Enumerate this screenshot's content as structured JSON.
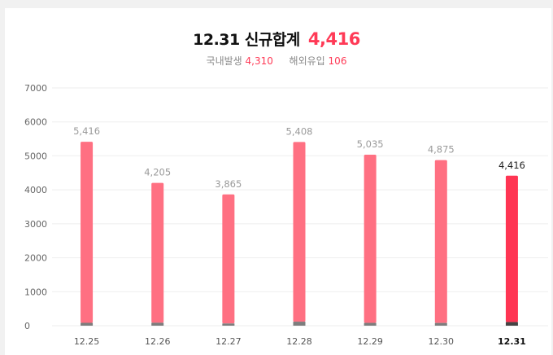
{
  "header": {
    "title": "12.31 신규합계",
    "total": "4,416",
    "domestic_label": "국내발생",
    "domestic_value": "4,310",
    "overseas_label": "해외유입",
    "overseas_value": "106"
  },
  "colors": {
    "bar": "#ff7082",
    "bar_highlight": "#ff3553",
    "import_bar": "#7d7d7d",
    "import_bar_highlight": "#444444",
    "grid": "#eeeeee"
  },
  "chart_data": {
    "type": "bar",
    "stacked": true,
    "categories": [
      "12.25",
      "12.26",
      "12.27",
      "12.28",
      "12.29",
      "12.30",
      "12.31"
    ],
    "value_labels": [
      "5,416",
      "4,205",
      "3,865",
      "5,408",
      "5,035",
      "4,875",
      "4,416"
    ],
    "series": [
      {
        "name": "국내발생",
        "values": [
          5331,
          4118,
          3800,
          5290,
          4952,
          4794,
          4310
        ]
      },
      {
        "name": "해외유입",
        "values": [
          85,
          87,
          65,
          118,
          83,
          81,
          106
        ]
      }
    ],
    "totals": [
      5416,
      4205,
      3865,
      5408,
      5035,
      4875,
      4416
    ],
    "highlight_index": 6,
    "ylim": [
      0,
      7000
    ],
    "yticks": [
      0,
      1000,
      2000,
      3000,
      4000,
      5000,
      6000,
      7000
    ],
    "grid": true
  }
}
